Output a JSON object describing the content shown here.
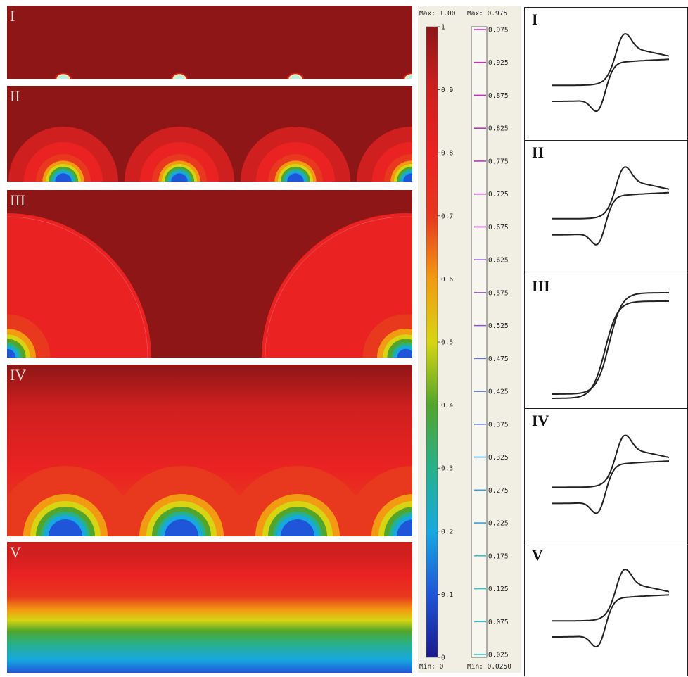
{
  "figure": {
    "panels": [
      {
        "label": "I",
        "shape": "pinpoint",
        "spacing": 165
      },
      {
        "label": "II",
        "shape": "hemispheres-small",
        "spacing": 165
      },
      {
        "label": "III",
        "shape": "hemispheres-large",
        "spacing": 567
      },
      {
        "label": "IV",
        "shape": "hemispheres-overlap",
        "spacing": 165
      },
      {
        "label": "V",
        "shape": "planar",
        "spacing": 0
      }
    ],
    "colorbar_main": {
      "max_label": "Max: 1.00",
      "min_label": "Min: 0",
      "ticks": [
        "0",
        "0.1",
        "0.2",
        "0.3",
        "0.4",
        "0.5",
        "0.6",
        "0.7",
        "0.8",
        "0.9",
        "1"
      ]
    },
    "colorbar_contour": {
      "max_label": "Max: 0.975",
      "min_label": "Min: 0.0250",
      "ticks": [
        "0.025",
        "0.075",
        "0.125",
        "0.175",
        "0.225",
        "0.275",
        "0.325",
        "0.375",
        "0.425",
        "0.475",
        "0.525",
        "0.575",
        "0.625",
        "0.675",
        "0.725",
        "0.775",
        "0.825",
        "0.875",
        "0.925",
        "0.975"
      ]
    },
    "voltammograms": [
      {
        "label": "I",
        "type": "peaked"
      },
      {
        "label": "II",
        "type": "peaked"
      },
      {
        "label": "III",
        "type": "sigmoidal"
      },
      {
        "label": "IV",
        "type": "peaked"
      },
      {
        "label": "V",
        "type": "peaked"
      }
    ],
    "colors": {
      "scale": [
        "#1a1a8c",
        "#1f55d8",
        "#17a8e0",
        "#27b08a",
        "#52a52a",
        "#d7d513",
        "#f29a12",
        "#e8381e",
        "#ea2222",
        "#cf1f1f",
        "#8e1616"
      ],
      "contour_scale": [
        "#24c9c9",
        "#3aa0e0",
        "#5f72cf",
        "#8a55c8",
        "#b03fc0",
        "#d028c0"
      ]
    }
  }
}
